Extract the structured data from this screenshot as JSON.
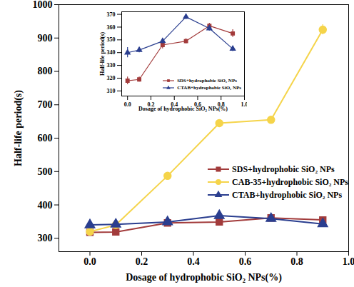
{
  "chart_data": [
    {
      "type": "line",
      "x_label": "Dosage of hydrophobic SiO₂ NPs(%)",
      "y_label": "Half-life period(s)",
      "x": [
        0,
        0.1,
        0.3,
        0.5,
        0.7,
        0.9
      ],
      "xlim": [
        -0.12,
        1.0
      ],
      "xticks": [
        {
          "value": 0,
          "label": "0.0"
        },
        0.2,
        0.4,
        0.6,
        0.8,
        {
          "value": 1,
          "label": "1.0"
        }
      ],
      "ylim": [
        260,
        1000
      ],
      "yticks": [
        300,
        400,
        500,
        600,
        700,
        800,
        900,
        1000
      ],
      "legend": "right",
      "series": [
        {
          "name": "SDS+hydrophobic SiO₂ NPs",
          "color": "#a23b3b",
          "marker": "square",
          "values": [
            318,
            319,
            346,
            349,
            361,
            355
          ],
          "errors": [
            3,
            2,
            3,
            2,
            2,
            3
          ]
        },
        {
          "name": "CAB-35+hydrophobic SiO₂ NPs",
          "color": "#f5d44a",
          "marker": "circle",
          "values": [
            320,
            340,
            487,
            645,
            655,
            925
          ],
          "errors": [
            6,
            5,
            10,
            10,
            10,
            15
          ]
        },
        {
          "name": "CTAB+hydrophobic SiO₂ NPs",
          "color": "#2a3e8f",
          "marker": "triangle",
          "values": [
            340,
            342,
            349,
            368,
            359,
            343
          ],
          "errors": [
            4,
            2,
            2,
            2,
            2,
            2
          ]
        }
      ]
    },
    {
      "type": "line",
      "x_label": "Dosage of hydrophobic SiO₂ NPs(%)",
      "y_label": "Half-life period(s)",
      "x": [
        0,
        0.1,
        0.3,
        0.5,
        0.7,
        0.9
      ],
      "xlim": [
        -0.05,
        1.0
      ],
      "xticks": [
        {
          "value": 0,
          "label": "0.0"
        },
        0.2,
        0.4,
        0.6,
        0.8,
        {
          "value": 1,
          "label": "1.0"
        }
      ],
      "ylim": [
        306,
        372
      ],
      "yticks": [
        310,
        320,
        330,
        340,
        350,
        360,
        370
      ],
      "legend": "lower right",
      "series": [
        {
          "name": "SDS+hydrophobic SiO₂ NPs",
          "color": "#a23b3b",
          "marker": "square",
          "values": [
            318,
            319,
            346,
            349,
            361,
            355
          ],
          "errors": [
            3,
            2,
            3,
            2,
            2,
            3
          ]
        },
        {
          "name": "CTAB+hydrophobic SiO₂ NPs",
          "color": "#2a3e8f",
          "marker": "triangle",
          "values": [
            340,
            342,
            349,
            368,
            359,
            343
          ],
          "errors": [
            4,
            2,
            2,
            2,
            2,
            2
          ]
        }
      ]
    }
  ]
}
